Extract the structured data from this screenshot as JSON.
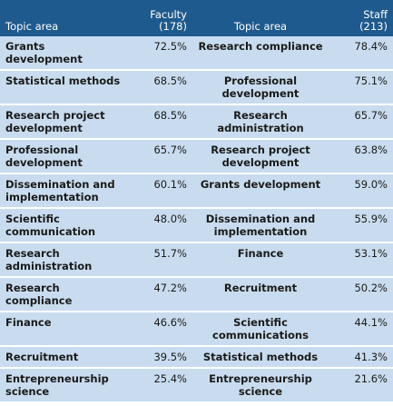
{
  "header": {
    "topic_label_1": "Topic area",
    "faculty_label": "Faculty",
    "faculty_n": "(178)",
    "topic_label_2": "Topic area",
    "staff_label": "Staff",
    "staff_n": "(213)"
  },
  "rows": [
    {
      "faculty_topic": "Grants development",
      "faculty_pct": "72.5%",
      "staff_topic": "Research compliance",
      "staff_pct": "78.4%"
    },
    {
      "faculty_topic": "Statistical methods",
      "faculty_pct": "68.5%",
      "staff_topic": "Professional development",
      "staff_pct": "75.1%"
    },
    {
      "faculty_topic": "Research project development",
      "faculty_pct": "68.5%",
      "staff_topic": "Research administration",
      "staff_pct": "65.7%"
    },
    {
      "faculty_topic": "Professional development",
      "faculty_pct": "65.7%",
      "staff_topic": "Research project development",
      "staff_pct": "63.8%"
    },
    {
      "faculty_topic": "Dissemination and implementation",
      "faculty_pct": "60.1%",
      "staff_topic": "Grants development",
      "staff_pct": "59.0%"
    },
    {
      "faculty_topic": "Scientific communication",
      "faculty_pct": "48.0%",
      "staff_topic": "Dissemination and implementation",
      "staff_pct": "55.9%"
    },
    {
      "faculty_topic": "Research administration",
      "faculty_pct": "51.7%",
      "staff_topic": "Finance",
      "staff_pct": "53.1%"
    },
    {
      "faculty_topic": "Research compliance",
      "faculty_pct": "47.2%",
      "staff_topic": "Recruitment",
      "staff_pct": "50.2%"
    },
    {
      "faculty_topic": "Finance",
      "faculty_pct": "46.6%",
      "staff_topic": "Scientific communications",
      "staff_pct": "44.1%"
    },
    {
      "faculty_topic": "Recruitment",
      "faculty_pct": "39.5%",
      "staff_topic": "Statistical methods",
      "staff_pct": "41.3%"
    },
    {
      "faculty_topic": "Entrepreneurship science",
      "faculty_pct": "25.4%",
      "staff_topic": "Entrepreneurship science",
      "staff_pct": "21.6%"
    }
  ],
  "colors": {
    "header_bg": "#1f5a8e",
    "row_bg": "#c9dcef",
    "header_text": "#ffffff"
  }
}
